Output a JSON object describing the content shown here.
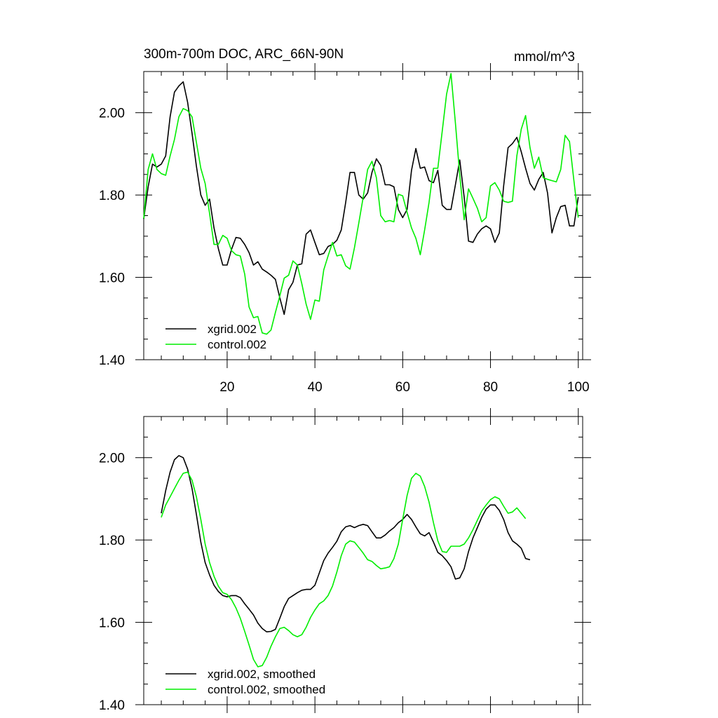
{
  "chart_data": [
    {
      "type": "line",
      "title": "300m-700m DOC, ARC_66N-90N",
      "units": "mmol/m^3",
      "xlim": [
        1,
        101
      ],
      "ylim": [
        1.4,
        2.1
      ],
      "x_ticks": [
        20,
        40,
        60,
        80,
        100
      ],
      "x_tick_labels": [
        "20",
        "40",
        "60",
        "80",
        "100"
      ],
      "y_ticks": [
        1.4,
        1.6,
        1.8,
        2.0
      ],
      "y_tick_labels": [
        "1.40",
        "1.60",
        "1.80",
        "2.00"
      ],
      "legend_position": "bottom-left",
      "series": [
        {
          "name": "xgrid.002",
          "color": "#000000",
          "x_start": 1,
          "values": [
            1.742,
            1.82,
            1.875,
            1.868,
            1.875,
            1.895,
            1.99,
            2.05,
            2.065,
            2.075,
            2.025,
            1.95,
            1.87,
            1.8,
            1.775,
            1.79,
            1.72,
            1.67,
            1.63,
            1.63,
            1.668,
            1.697,
            1.695,
            1.68,
            1.66,
            1.63,
            1.638,
            1.62,
            1.613,
            1.605,
            1.595,
            1.55,
            1.51,
            1.57,
            1.588,
            1.63,
            1.633,
            1.705,
            1.715,
            1.685,
            1.655,
            1.658,
            1.675,
            1.68,
            1.69,
            1.715,
            1.782,
            1.855,
            1.855,
            1.8,
            1.79,
            1.805,
            1.855,
            1.888,
            1.872,
            1.825,
            1.825,
            1.82,
            1.765,
            1.745,
            1.765,
            1.86,
            1.913,
            1.865,
            1.868,
            1.835,
            1.83,
            1.86,
            1.775,
            1.765,
            1.765,
            1.825,
            1.885,
            1.795,
            1.688,
            1.685,
            1.705,
            1.718,
            1.725,
            1.718,
            1.685,
            1.708,
            1.822,
            1.915,
            1.925,
            1.94,
            1.905,
            1.865,
            1.828,
            1.812,
            1.838,
            1.855,
            1.805,
            1.708,
            1.745,
            1.772,
            1.775,
            1.725,
            1.725,
            1.795
          ]
        },
        {
          "name": "control.002",
          "color": "#00ee00",
          "x_start": 1,
          "values": [
            1.743,
            1.862,
            1.9,
            1.862,
            1.852,
            1.848,
            1.895,
            1.935,
            1.99,
            2.01,
            2.005,
            1.99,
            1.928,
            1.865,
            1.828,
            1.755,
            1.68,
            1.68,
            1.702,
            1.695,
            1.665,
            1.655,
            1.652,
            1.608,
            1.528,
            1.502,
            1.505,
            1.465,
            1.462,
            1.472,
            1.515,
            1.555,
            1.598,
            1.605,
            1.64,
            1.63,
            1.585,
            1.535,
            1.498,
            1.545,
            1.542,
            1.618,
            1.652,
            1.685,
            1.652,
            1.655,
            1.628,
            1.62,
            1.672,
            1.732,
            1.795,
            1.862,
            1.882,
            1.842,
            1.75,
            1.735,
            1.738,
            1.735,
            1.802,
            1.798,
            1.758,
            1.72,
            1.695,
            1.655,
            1.715,
            1.782,
            1.865,
            1.865,
            1.955,
            2.045,
            2.095,
            1.975,
            1.848,
            1.74,
            1.815,
            1.792,
            1.768,
            1.735,
            1.745,
            1.822,
            1.83,
            1.812,
            1.785,
            1.782,
            1.785,
            1.895,
            1.96,
            1.993,
            1.915,
            1.865,
            1.892,
            1.842,
            1.838,
            1.835,
            1.832,
            1.862,
            1.945,
            1.93,
            1.835,
            1.745
          ]
        }
      ]
    },
    {
      "type": "line",
      "title": "",
      "xlim": [
        1,
        101
      ],
      "ylim": [
        1.4,
        2.1
      ],
      "x_ticks": [
        20,
        40,
        60,
        80,
        100
      ],
      "x_tick_labels": [],
      "y_ticks": [
        1.4,
        1.6,
        1.8,
        2.0
      ],
      "y_tick_labels": [
        "1.40",
        "1.60",
        "1.80",
        "2.00"
      ],
      "legend_position": "bottom-left",
      "series": [
        {
          "name": "xgrid.002, smoothed",
          "color": "#000000",
          "x_start": 5,
          "values": [
            1.865,
            1.92,
            1.965,
            1.995,
            2.005,
            2.0,
            1.972,
            1.925,
            1.862,
            1.795,
            1.745,
            1.715,
            1.69,
            1.675,
            1.665,
            1.662,
            1.665,
            1.665,
            1.66,
            1.645,
            1.632,
            1.618,
            1.598,
            1.585,
            1.577,
            1.578,
            1.583,
            1.61,
            1.638,
            1.658,
            1.665,
            1.672,
            1.678,
            1.68,
            1.68,
            1.69,
            1.72,
            1.75,
            1.768,
            1.782,
            1.797,
            1.82,
            1.832,
            1.835,
            1.83,
            1.835,
            1.838,
            1.835,
            1.82,
            1.805,
            1.805,
            1.812,
            1.822,
            1.83,
            1.842,
            1.85,
            1.862,
            1.85,
            1.832,
            1.815,
            1.81,
            1.818,
            1.795,
            1.77,
            1.762,
            1.75,
            1.735,
            1.705,
            1.708,
            1.73,
            1.772,
            1.805,
            1.83,
            1.855,
            1.875,
            1.885,
            1.885,
            1.872,
            1.85,
            1.818,
            1.798,
            1.79,
            1.78,
            1.755,
            1.752
          ]
        },
        {
          "name": "control.002, smoothed",
          "color": "#00ee00",
          "x_start": 5,
          "values": [
            1.855,
            1.885,
            1.905,
            1.925,
            1.945,
            1.962,
            1.965,
            1.945,
            1.905,
            1.85,
            1.79,
            1.745,
            1.712,
            1.688,
            1.672,
            1.668,
            1.655,
            1.635,
            1.61,
            1.578,
            1.545,
            1.51,
            1.492,
            1.495,
            1.515,
            1.542,
            1.565,
            1.585,
            1.588,
            1.58,
            1.57,
            1.565,
            1.57,
            1.588,
            1.612,
            1.63,
            1.645,
            1.652,
            1.665,
            1.688,
            1.722,
            1.762,
            1.79,
            1.798,
            1.795,
            1.782,
            1.768,
            1.752,
            1.748,
            1.738,
            1.73,
            1.732,
            1.735,
            1.755,
            1.79,
            1.85,
            1.908,
            1.95,
            1.962,
            1.955,
            1.93,
            1.892,
            1.842,
            1.798,
            1.772,
            1.77,
            1.785,
            1.785,
            1.785,
            1.79,
            1.805,
            1.825,
            1.848,
            1.87,
            1.885,
            1.898,
            1.905,
            1.9,
            1.882,
            1.865,
            1.868,
            1.878,
            1.865,
            1.852
          ]
        }
      ]
    }
  ]
}
